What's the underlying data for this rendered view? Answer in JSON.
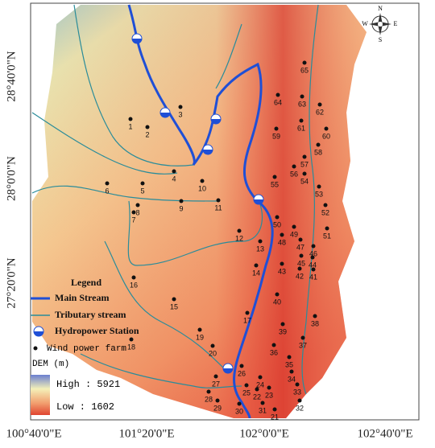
{
  "map": {
    "longitude_labels": [
      "100°40'0\"E",
      "101°20'0\"E",
      "102°0'0\"E",
      "102°40'0\"E"
    ],
    "latitude_labels": [
      "28°40'0\"N",
      "28°0'0\"N",
      "27°20'0\"N"
    ],
    "compass": {
      "north": "N",
      "south": "S",
      "east": "E",
      "west": "W"
    },
    "legend": {
      "title": "Legend",
      "main_stream": "Main Stream",
      "tributary": "Tributary stream",
      "hydropower": "Hydropower Station",
      "wind_farm": "Wind power farm",
      "dem_title": "DEM (m)",
      "dem_high": "High : 5921",
      "dem_low": "Low : 1602"
    },
    "farms": [
      "1",
      "2",
      "3",
      "4",
      "5",
      "6",
      "7",
      "8",
      "9",
      "10",
      "11",
      "12",
      "13",
      "14",
      "15",
      "16",
      "17",
      "18",
      "19",
      "20",
      "21",
      "22",
      "23",
      "24",
      "25",
      "26",
      "27",
      "28",
      "29",
      "30",
      "31",
      "32",
      "33",
      "34",
      "35",
      "36",
      "37",
      "38",
      "39",
      "40",
      "41",
      "42",
      "43",
      "44",
      "45",
      "46",
      "47",
      "48",
      "49",
      "50",
      "51",
      "52",
      "53",
      "54",
      "55",
      "56",
      "57",
      "58",
      "59",
      "60",
      "61",
      "62",
      "63",
      "64",
      "65"
    ]
  }
}
